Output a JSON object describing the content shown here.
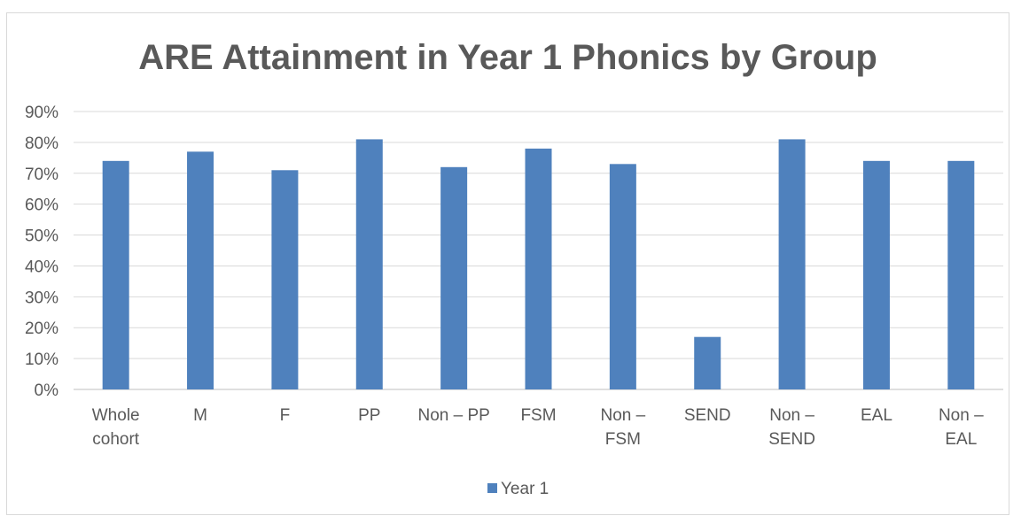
{
  "chart_data": {
    "type": "bar",
    "title": "ARE Attainment in Year 1 Phonics by Group",
    "xlabel": "",
    "ylabel": "",
    "categories": [
      [
        "Whole",
        "cohort"
      ],
      [
        "M"
      ],
      [
        "F"
      ],
      [
        "PP"
      ],
      [
        "Non – PP"
      ],
      [
        "FSM"
      ],
      [
        "Non –",
        "FSM"
      ],
      [
        "SEND"
      ],
      [
        "Non –",
        "SEND"
      ],
      [
        "EAL"
      ],
      [
        "Non –",
        "EAL"
      ]
    ],
    "series": [
      {
        "name": "Year 1",
        "color": "#4f81bd",
        "values": [
          74,
          77,
          71,
          81,
          72,
          78,
          73,
          17,
          81,
          74,
          74
        ]
      }
    ],
    "ylim": [
      0,
      90
    ],
    "yticks": [
      "0%",
      "10%",
      "20%",
      "30%",
      "40%",
      "50%",
      "60%",
      "70%",
      "80%",
      "90%"
    ],
    "grid": true,
    "legend_position": "bottom"
  }
}
